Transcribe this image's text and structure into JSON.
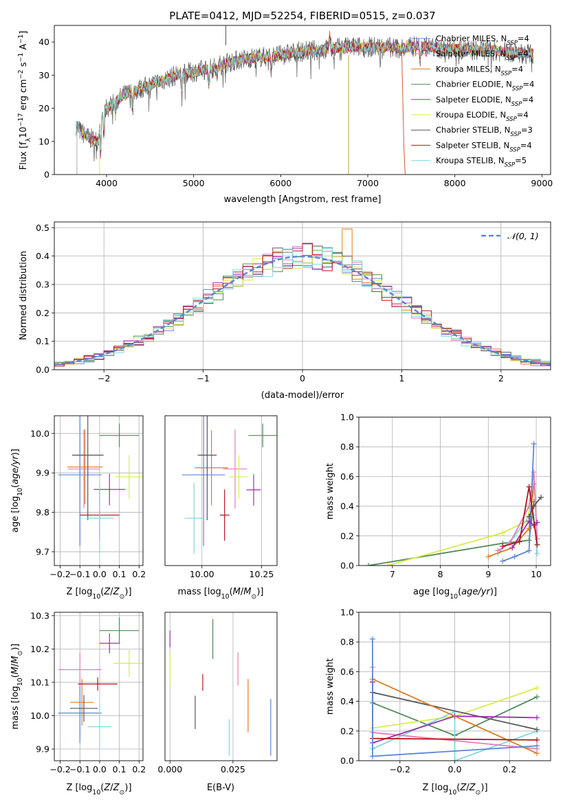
{
  "figure": {
    "title": "PLATE=0412, MJD=52254, FIBERID=0515, z=0.037"
  },
  "series_names": [
    "Chabrier MILES, N_SSP=4",
    "Salpeter MILES, N_SSP=4",
    "Kroupa MILES, N_SSP=4",
    "Chabrier ELODIE, N_SSP=4",
    "Salpeter ELODIE, N_SSP=4",
    "Kroupa ELODIE, N_SSP=4",
    "Chabrier STELIB, N_SSP=3",
    "Salpeter STELIB, N_SSP=4",
    "Kroupa STELIB, N_SSP=5"
  ],
  "series_colors": [
    "#5b86d6",
    "#e87ab8",
    "#e07b1f",
    "#4f8a55",
    "#9b2fae",
    "#d6ec4a",
    "#555555",
    "#b5121b",
    "#7fd9e0"
  ],
  "chart_data": [
    {
      "type": "line",
      "panel": "spectrum",
      "title": "PLATE=0412, MJD=52254, FIBERID=0515, z=0.037",
      "xlabel": "wavelength [Angstrom, rest frame]",
      "ylabel": "Flux [f_λ 10^-17 erg cm^-2 s^-1 A^-1]",
      "xlim": [
        3400,
        9100
      ],
      "ylim": [
        0,
        45
      ],
      "xticks": [
        4000,
        5000,
        6000,
        7000,
        8000,
        9000
      ],
      "yticks": [
        0,
        10,
        20,
        30,
        40
      ],
      "legend": "top-right",
      "continuum_x": [
        3650,
        3700,
        3800,
        3900,
        3950,
        4000,
        4100,
        4200,
        4300,
        4400,
        4600,
        4800,
        5000,
        5200,
        5400,
        5600,
        5800,
        6000,
        6200,
        6400,
        6600,
        6800,
        7000,
        7200,
        7400,
        7600,
        7800,
        8000,
        8200,
        8400,
        8600,
        8800
      ],
      "continuum_y": [
        15,
        13,
        11,
        10,
        18,
        20,
        22,
        24,
        25,
        26,
        28,
        30,
        31,
        32,
        34,
        35,
        35.5,
        36,
        37,
        37.5,
        38,
        38.5,
        38.5,
        38.5,
        38,
        39,
        38,
        38,
        37.5,
        37.5,
        37,
        36.5
      ]
    },
    {
      "type": "bar",
      "panel": "residual histogram",
      "xlabel": "(data-model)/error",
      "ylabel": "Normed distribution",
      "xlim": [
        -2.5,
        2.5
      ],
      "ylim": [
        0,
        0.52
      ],
      "xticks": [
        -2,
        -1,
        0,
        1,
        2
      ],
      "yticks": [
        0.0,
        0.1,
        0.2,
        0.3,
        0.4,
        0.5
      ],
      "reference_curve": "𝒩(0, 1)",
      "legend": "top-right",
      "bin_edges_start": -2.5,
      "bin_width": 0.1
    },
    {
      "type": "scatter",
      "panel": "age vs Z",
      "xlabel": "Z [log10(Z/Z⊙)]",
      "ylabel": "age [log10(age/yr)]",
      "xlim": [
        -0.23,
        0.22
      ],
      "ylim": [
        9.665,
        10.045
      ],
      "xticks": [
        -0.2,
        -0.1,
        0.0,
        0.1,
        0.2
      ],
      "yticks": [
        9.7,
        9.8,
        9.9,
        10.0
      ],
      "points": [
        {
          "x": -0.1,
          "xerr": 0.11,
          "y": 9.895,
          "yerr": 0.18
        },
        {
          "x": -0.08,
          "xerr": 0.08,
          "y": 9.91,
          "yerr": 0.1
        },
        {
          "x": -0.075,
          "xerr": 0.09,
          "y": 9.915,
          "yerr": 0.095
        },
        {
          "x": 0.1,
          "xerr": 0.1,
          "y": 9.995,
          "yerr": 0.03
        },
        {
          "x": 0.05,
          "xerr": 0.08,
          "y": 9.858,
          "yerr": 0.04
        },
        {
          "x": 0.15,
          "xerr": 0.07,
          "y": 9.89,
          "yerr": 0.055
        },
        {
          "x": -0.06,
          "xerr": 0.08,
          "y": 9.945,
          "yerr": 0.165
        },
        {
          "x": 0.0,
          "xerr": 0.1,
          "y": 9.793,
          "yerr": 0.065
        },
        {
          "x": 0.0,
          "xerr": 0.07,
          "y": 9.785,
          "yerr": 0.09
        }
      ]
    },
    {
      "type": "scatter",
      "panel": "age vs mass",
      "xlabel": "mass [log10(M/M⊙)]",
      "ylabel": "",
      "xlim": [
        9.845,
        10.315
      ],
      "ylim": [
        9.665,
        10.045
      ],
      "xticks": [
        10.0,
        10.25
      ],
      "points": [
        {
          "x": 10.007,
          "xerr": 0.09,
          "y": 9.895,
          "yerr": 0.18
        },
        {
          "x": 10.139,
          "xerr": 0.05,
          "y": 9.91,
          "yerr": 0.1
        },
        {
          "x": 10.04,
          "xerr": 0.07,
          "y": 9.913,
          "yerr": 0.095
        },
        {
          "x": 10.255,
          "xerr": 0.06,
          "y": 9.995,
          "yerr": 0.03
        },
        {
          "x": 10.217,
          "xerr": 0.03,
          "y": 9.857,
          "yerr": 0.04
        },
        {
          "x": 10.155,
          "xerr": 0.04,
          "y": 9.89,
          "yerr": 0.055
        },
        {
          "x": 10.022,
          "xerr": 0.04,
          "y": 9.945,
          "yerr": 0.165
        },
        {
          "x": 10.095,
          "xerr": 0.02,
          "y": 9.793,
          "yerr": 0.065
        },
        {
          "x": 9.967,
          "xerr": 0.04,
          "y": 9.785,
          "yerr": 0.09
        }
      ]
    },
    {
      "type": "line",
      "panel": "mass weight vs age",
      "xlabel": "age [log10(age/yr)]",
      "ylabel": "mass weight",
      "xlim": [
        6.3,
        10.3
      ],
      "ylim": [
        0,
        1.0
      ],
      "xticks": [
        7,
        8,
        9,
        10
      ],
      "yticks": [
        0.0,
        0.2,
        0.4,
        0.6,
        0.8,
        1.0
      ],
      "series": [
        {
          "x": [
            9.3,
            9.55,
            9.85,
            9.95
          ],
          "y": [
            0.03,
            0.06,
            0.1,
            0.82
          ]
        },
        {
          "x": [
            9.2,
            9.45,
            9.85,
            9.95,
            10.02
          ],
          "y": [
            0.1,
            0.15,
            0.4,
            0.63,
            0.18
          ]
        },
        {
          "x": [
            9.0,
            9.5,
            9.85,
            9.95
          ],
          "y": [
            0.06,
            0.12,
            0.25,
            0.55
          ]
        },
        {
          "x": [
            6.5,
            9.3,
            9.85,
            9.95
          ],
          "y": [
            0.0,
            0.15,
            0.17,
            0.43
          ]
        },
        {
          "x": [
            9.5,
            9.85,
            9.95,
            10.02
          ],
          "y": [
            0.12,
            0.3,
            0.27,
            0.29
          ]
        },
        {
          "x": [
            6.9,
            9.3,
            9.8,
            9.95
          ],
          "y": [
            0.0,
            0.22,
            0.3,
            0.49
          ]
        },
        {
          "x": [
            9.85,
            9.95,
            10.1
          ],
          "y": [
            0.33,
            0.4,
            0.46
          ]
        },
        {
          "x": [
            9.3,
            9.65,
            9.85,
            10.02
          ],
          "y": [
            0.13,
            0.16,
            0.53,
            0.14
          ]
        },
        {
          "x": [
            9.2,
            9.55,
            9.85,
            9.95,
            10.02
          ],
          "y": [
            0.08,
            0.2,
            0.33,
            0.34,
            0.08
          ]
        }
      ]
    },
    {
      "type": "scatter",
      "panel": "mass vs Z",
      "xlabel": "Z [log10(Z/Z⊙)]",
      "ylabel": "mass [log10(M/M⊙)]",
      "xlim": [
        -0.23,
        0.22
      ],
      "ylim": [
        9.865,
        10.31
      ],
      "xticks": [
        -0.2,
        -0.1,
        0.0,
        0.1,
        0.2
      ],
      "yticks": [
        9.9,
        10.0,
        10.1,
        10.2,
        10.3
      ],
      "points": [
        {
          "x": -0.1,
          "xerr": 0.11,
          "y": 10.008,
          "yerr": 0.09
        },
        {
          "x": -0.1,
          "xerr": 0.11,
          "y": 10.138,
          "yerr": 0.05
        },
        {
          "x": -0.09,
          "xerr": 0.06,
          "y": 10.04,
          "yerr": 0.07
        },
        {
          "x": 0.1,
          "xerr": 0.1,
          "y": 10.255,
          "yerr": 0.04
        },
        {
          "x": 0.05,
          "xerr": 0.05,
          "y": 10.217,
          "yerr": 0.03
        },
        {
          "x": 0.15,
          "xerr": 0.08,
          "y": 10.157,
          "yerr": 0.04
        },
        {
          "x": -0.08,
          "xerr": 0.07,
          "y": 10.022,
          "yerr": 0.04
        },
        {
          "x": -0.01,
          "xerr": 0.1,
          "y": 10.095,
          "yerr": 0.02
        },
        {
          "x": 0.0,
          "xerr": 0.06,
          "y": 9.967,
          "yerr": 0.07
        }
      ]
    },
    {
      "type": "scatter",
      "panel": "mass vs E(B-V)",
      "xlabel": "E(B-V)",
      "ylabel": "",
      "xlim": [
        -0.002,
        0.0425
      ],
      "ylim": [
        9.865,
        10.31
      ],
      "xticks": [
        0.0,
        0.025
      ],
      "points": [
        {
          "x": 0.04,
          "y": 9.965,
          "yerr": 0.085
        },
        {
          "x": 0.027,
          "y": 10.14,
          "yerr": 0.05
        },
        {
          "x": 0.031,
          "y": 10.03,
          "yerr": 0.08
        },
        {
          "x": 0.017,
          "y": 10.23,
          "yerr": 0.06
        },
        {
          "x": 0.0,
          "y": 10.23,
          "yerr": 0.025
        },
        {
          "x": 0.0,
          "y": 10.14,
          "yerr": 0.05
        },
        {
          "x": 0.01,
          "y": 10.01,
          "yerr": 0.05
        },
        {
          "x": 0.013,
          "y": 10.1,
          "yerr": 0.025
        },
        {
          "x": 0.0235,
          "y": 9.935,
          "yerr": 0.055
        }
      ]
    },
    {
      "type": "line",
      "panel": "mass weight vs Z",
      "xlabel": "Z [log10(Z/Z⊙)]",
      "ylabel": "mass weight",
      "xlim": [
        -0.35,
        0.35
      ],
      "ylim": [
        0,
        1.0
      ],
      "xticks": [
        -0.2,
        0.0,
        0.2
      ],
      "yticks": [
        0.0,
        0.2,
        0.4,
        0.6,
        0.8,
        1.0
      ],
      "series": [
        {
          "x": [
            -0.3,
            -0.3,
            0.3
          ],
          "y": [
            0.82,
            0.03,
            0.1
          ]
        },
        {
          "x": [
            -0.3,
            -0.3,
            0.3
          ],
          "y": [
            0.63,
            0.19,
            0.08
          ]
        },
        {
          "x": [
            -0.3,
            0.3
          ],
          "y": [
            0.55,
            0.05
          ]
        },
        {
          "x": [
            -0.3,
            0.0,
            0.3
          ],
          "y": [
            0.39,
            0.17,
            0.43
          ]
        },
        {
          "x": [
            -0.3,
            0.0,
            0.3
          ],
          "y": [
            0.12,
            0.3,
            0.29
          ]
        },
        {
          "x": [
            -0.3,
            0.0,
            0.3
          ],
          "y": [
            0.22,
            0.3,
            0.49
          ]
        },
        {
          "x": [
            -0.3,
            0.3
          ],
          "y": [
            0.46,
            0.21
          ]
        },
        {
          "x": [
            -0.3,
            -0.3,
            0.3
          ],
          "y": [
            0.53,
            0.15,
            0.14
          ]
        },
        {
          "x": [
            -0.3,
            0.0,
            0.0,
            0.3
          ],
          "y": [
            0.08,
            0.33,
            0.0,
            0.2
          ]
        }
      ]
    }
  ]
}
